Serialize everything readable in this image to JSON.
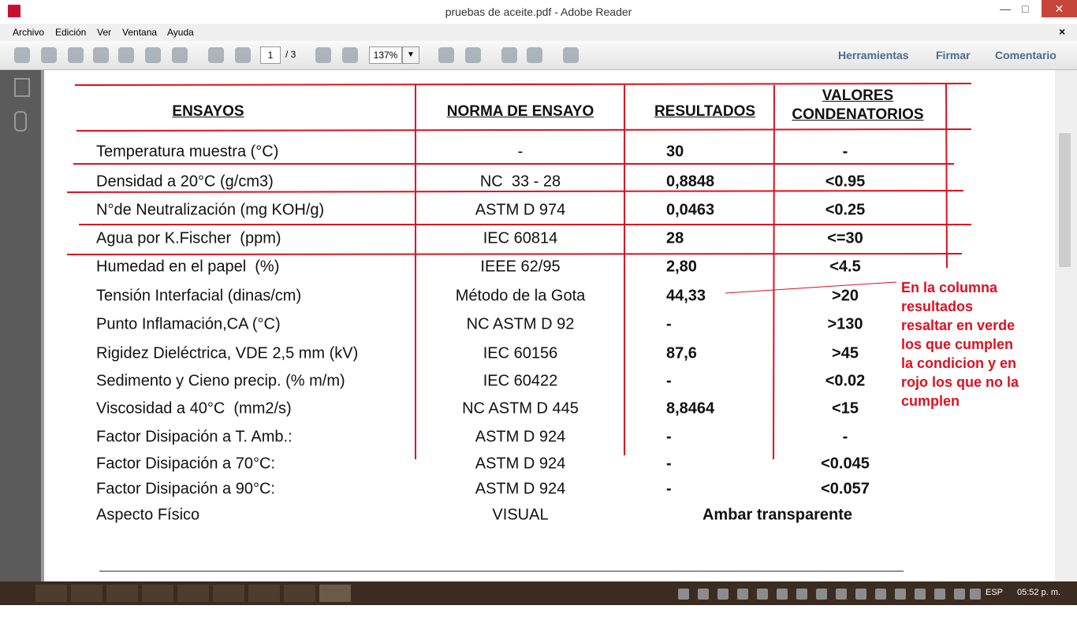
{
  "window": {
    "title": "pruebas de aceite.pdf - Adobe Reader",
    "menu": [
      "Archivo",
      "Edición",
      "Ver",
      "Ventana",
      "Ayuda"
    ],
    "page_current": "1",
    "page_total": "/ 3",
    "zoom": "137%",
    "panels": [
      "Herramientas",
      "Firmar",
      "Comentario"
    ]
  },
  "table": {
    "headers": [
      "ENSAYOS",
      "NORMA DE ENSAYO",
      "RESULTADOS",
      "VALORES CONDENATORIOS"
    ],
    "rows": [
      [
        "Temperatura muestra (°C)",
        "-",
        "30",
        "-"
      ],
      [
        "Densidad a 20°C (g/cm3)",
        "NC  33 - 28",
        "0,8848",
        "<0.95"
      ],
      [
        "N°de Neutralización (mg KOH/g)",
        "ASTM D 974",
        "0,0463",
        "<0.25"
      ],
      [
        "Agua por K.Fischer  (ppm)",
        "IEC 60814",
        "28",
        "<=30"
      ],
      [
        "Humedad en el papel  (%)",
        "IEEE 62/95",
        "2,80",
        "<4.5"
      ],
      [
        "Tensión Interfacial (dinas/cm)",
        "Método de la Gota",
        "44,33",
        ">20"
      ],
      [
        "Punto Inflamación,CA (°C)",
        "NC ASTM D 92",
        "-",
        ">130"
      ],
      [
        "Rigidez Dieléctrica, VDE 2,5 mm (kV)",
        "IEC 60156",
        "87,6",
        ">45"
      ],
      [
        "Sedimento y Cieno precip. (% m/m)",
        "IEC 60422",
        "-",
        "<0.02"
      ],
      [
        "Viscosidad a 40°C  (mm2/s)",
        "NC ASTM D 445",
        "8,8464",
        "<15"
      ],
      [
        "Factor Disipación a T. Amb.:",
        "ASTM D 924",
        "-",
        "-"
      ],
      [
        "Factor Disipación a 70°C:",
        "ASTM D 924",
        "-",
        "<0.045"
      ],
      [
        "Factor Disipación a 90°C:",
        "ASTM D 924",
        "-",
        "<0.057"
      ],
      [
        "Aspecto Físico",
        "VISUAL",
        "Ambar transparente"
      ]
    ]
  },
  "note": [
    "En la columna",
    "resultados",
    "resaltar en verde",
    "los que cumplen",
    "la condicion y en",
    "rojo los que no la",
    "cumplen"
  ],
  "taskbar": {
    "language": "ESP",
    "time": "05:52 p. m."
  }
}
